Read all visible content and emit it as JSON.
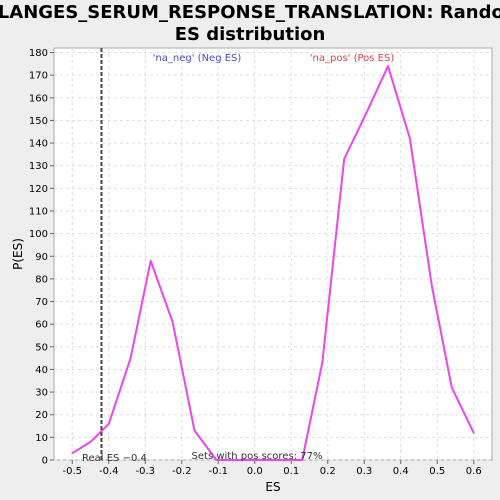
{
  "chart_data": {
    "type": "line",
    "title_lines": [
      "BILANGES_SERUM_RESPONSE_TRANSLATION: Random",
      "ES distribution"
    ],
    "xlabel": "ES",
    "ylabel": "P(ES)",
    "xlim": [
      -0.55,
      0.65
    ],
    "ylim": [
      0,
      182
    ],
    "xticks": [
      -0.5,
      -0.4,
      -0.3,
      -0.2,
      -0.1,
      0.0,
      0.1,
      0.2,
      0.3,
      0.4,
      0.5,
      0.6
    ],
    "xtick_labels": [
      "-0.5",
      "-0.4",
      "-0.3",
      "-0.2",
      "-0.1",
      "0.0",
      "0.1",
      "0.2",
      "0.3",
      "0.4",
      "0.5",
      "0.6"
    ],
    "yticks": [
      0,
      10,
      20,
      30,
      40,
      50,
      60,
      70,
      80,
      90,
      100,
      110,
      120,
      130,
      140,
      150,
      160,
      170,
      180
    ],
    "ytick_labels": [
      "0",
      "10",
      "20",
      "30",
      "40",
      "50",
      "60",
      "70",
      "80",
      "90",
      "100",
      "110",
      "120",
      "130",
      "140",
      "150",
      "160",
      "170",
      "180"
    ],
    "grid": true,
    "series": [
      {
        "color": "#ee44ee",
        "x": [
          -0.5,
          -0.45,
          -0.4,
          -0.34,
          -0.285,
          -0.225,
          -0.165,
          -0.105,
          0.13,
          0.185,
          0.245,
          0.305,
          0.365,
          0.425,
          0.485,
          0.54,
          0.6
        ],
        "y": [
          3,
          8,
          16,
          45,
          88,
          61,
          13,
          0,
          0,
          43,
          133,
          153,
          174,
          142,
          77,
          32,
          12
        ]
      }
    ],
    "real_es": {
      "x": -0.42,
      "label": "Real ES −0.4",
      "color": "#444444"
    },
    "annotations": {
      "neg_label": "'na_neg' (Neg ES)",
      "neg_color": "#4a4ad0",
      "pos_label": "'na_pos' (Pos ES)",
      "pos_color": "#e0404a",
      "sets_label": "Sets with pos scores: 77%"
    },
    "colors": {
      "background": "#eeeeee",
      "plot_background": "#ffffff",
      "grid": "#dddddd"
    }
  }
}
